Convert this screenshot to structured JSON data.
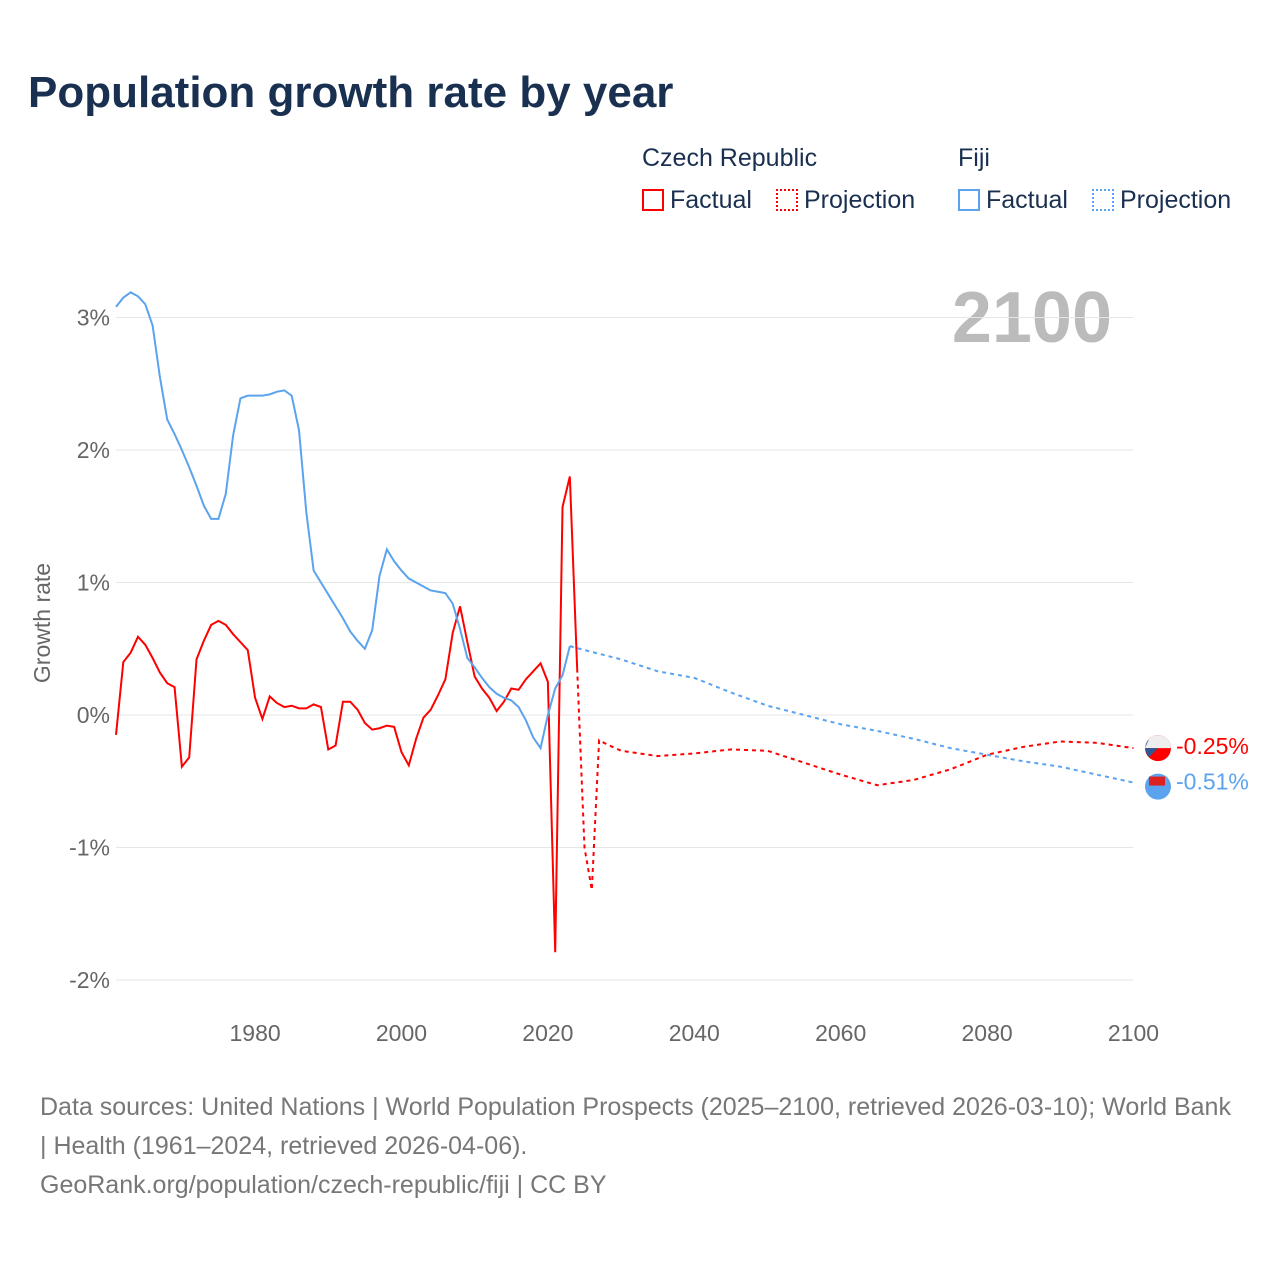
{
  "title": "Population growth rate by year",
  "legend": {
    "groups": [
      {
        "name": "Czech Republic",
        "color": "#ff0000",
        "factual": "Factual",
        "projection": "Projection"
      },
      {
        "name": "Fiji",
        "color": "#5ba3ee",
        "factual": "Factual",
        "projection": "Projection"
      }
    ]
  },
  "footer": {
    "line1": "Data sources: United Nations | World Population Prospects (2025–2100, retrieved 2026-03-10); World Bank | Health (1961–2024, retrieved 2026-04-06).",
    "line2": "GeoRank.org/population/czech-republic/fiji | CC BY"
  },
  "chart_data": {
    "type": "line",
    "title": "Population growth rate by year",
    "xlabel": "",
    "ylabel": "Growth rate",
    "year_label": "2100",
    "xlim": [
      1961,
      2100
    ],
    "ylim": [
      -2.2,
      3.3
    ],
    "xticks": [
      1980,
      2000,
      2020,
      2040,
      2060,
      2080,
      2100
    ],
    "yticks": [
      {
        "v": 3,
        "label": "3%"
      },
      {
        "v": 2,
        "label": "2%"
      },
      {
        "v": 1,
        "label": "1%"
      },
      {
        "v": 0,
        "label": "0%"
      },
      {
        "v": -1,
        "label": "-1%"
      },
      {
        "v": -2,
        "label": "-2%"
      }
    ],
    "series": [
      {
        "name": "Czech Republic",
        "color": "#ff0000",
        "end_label": "-0.25%",
        "factual": {
          "start": 1961,
          "values": [
            -0.15,
            0.4,
            0.47,
            0.59,
            0.53,
            0.43,
            0.32,
            0.24,
            0.21,
            -0.39,
            -0.32,
            0.42,
            0.56,
            0.68,
            0.71,
            0.68,
            0.61,
            0.55,
            0.49,
            0.13,
            -0.03,
            0.14,
            0.09,
            0.06,
            0.07,
            0.05,
            0.05,
            0.08,
            0.06,
            -0.26,
            -0.23,
            0.1,
            0.1,
            0.04,
            -0.06,
            -0.11,
            -0.1,
            -0.08,
            -0.09,
            -0.28,
            -0.38,
            -0.18,
            -0.02,
            0.04,
            0.15,
            0.27,
            0.62,
            0.82,
            0.55,
            0.29,
            0.2,
            0.13,
            0.03,
            0.1,
            0.2,
            0.19,
            0.27,
            0.33,
            0.39,
            0.25,
            -1.79,
            1.57,
            1.8,
            0.35
          ]
        },
        "projection": {
          "x": [
            2024,
            2025,
            2026,
            2027,
            2028,
            2030,
            2035,
            2040,
            2045,
            2050,
            2055,
            2060,
            2065,
            2070,
            2075,
            2080,
            2085,
            2090,
            2095,
            2100
          ],
          "values": [
            0.35,
            -1.0,
            -1.32,
            -0.19,
            -0.22,
            -0.27,
            -0.31,
            -0.29,
            -0.26,
            -0.27,
            -0.36,
            -0.45,
            -0.53,
            -0.49,
            -0.41,
            -0.3,
            -0.24,
            -0.2,
            -0.21,
            -0.25
          ]
        }
      },
      {
        "name": "Fiji",
        "color": "#5ba3ee",
        "end_label": "-0.51%",
        "factual": {
          "start": 1961,
          "values": [
            3.08,
            3.15,
            3.19,
            3.16,
            3.1,
            2.94,
            2.55,
            2.23,
            2.12,
            2.0,
            1.87,
            1.73,
            1.58,
            1.48,
            1.48,
            1.67,
            2.11,
            2.39,
            2.41,
            2.41,
            2.41,
            2.42,
            2.44,
            2.45,
            2.41,
            2.15,
            1.53,
            1.09,
            1.0,
            0.91,
            0.82,
            0.73,
            0.63,
            0.56,
            0.5,
            0.64,
            1.05,
            1.25,
            1.16,
            1.09,
            1.03,
            1.0,
            0.97,
            0.94,
            0.93,
            0.92,
            0.84,
            0.65,
            0.43,
            0.36,
            0.28,
            0.21,
            0.16,
            0.13,
            0.11,
            0.06,
            -0.04,
            -0.17,
            -0.25,
            0.0,
            0.2,
            0.3,
            0.52
          ]
        },
        "projection": {
          "x": [
            2023,
            2025,
            2030,
            2035,
            2040,
            2045,
            2050,
            2055,
            2060,
            2065,
            2070,
            2075,
            2080,
            2085,
            2090,
            2095,
            2100
          ],
          "values": [
            0.52,
            0.49,
            0.42,
            0.33,
            0.28,
            0.17,
            0.07,
            0.0,
            -0.07,
            -0.12,
            -0.18,
            -0.25,
            -0.3,
            -0.35,
            -0.39,
            -0.45,
            -0.51
          ]
        }
      }
    ]
  }
}
